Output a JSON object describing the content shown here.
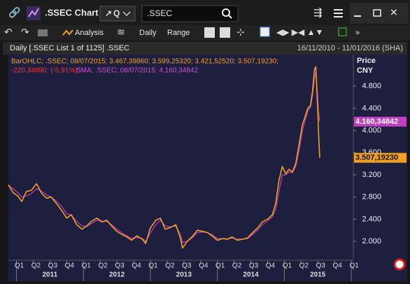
{
  "toolbar": {
    "app_title": ".SSEC Chart",
    "quote_button": "Q",
    "search": ".SSEC",
    "analysis": "Analysis",
    "interval": "Daily",
    "range": "Range"
  },
  "chart_data": {
    "type": "line",
    "header": "Daily [.SSEC List 1 of 1125] .SSEC",
    "date_range": "16/11/2010 - 11/01/2016 (SHA)",
    "y_label": "Price",
    "y_unit": "CNY",
    "annotations": [
      {
        "text": "BarOHLC; .SSEC; 08/07/2015; 3.467,39860; 3.599,25320; 3.421,52520; 3.507,19230;",
        "color": "#f0a020"
      },
      {
        "text": "-220,34890; (-5,91%);",
        "color": "#ff3030"
      },
      {
        "text": "SMA; .SSEC; 08/07/2015; 4.160,34842",
        "color": "#d050d0"
      }
    ],
    "x": [
      2010.88,
      2010.95,
      2011.02,
      2011.08,
      2011.15,
      2011.22,
      2011.3,
      2011.38,
      2011.45,
      2011.52,
      2011.6,
      2011.68,
      2011.75,
      2011.82,
      2011.9,
      2011.98,
      2012.05,
      2012.12,
      2012.2,
      2012.28,
      2012.35,
      2012.42,
      2012.5,
      2012.58,
      2012.65,
      2012.72,
      2012.8,
      2012.88,
      2012.93,
      2013.0,
      2013.08,
      2013.15,
      2013.22,
      2013.3,
      2013.38,
      2013.45,
      2013.48,
      2013.55,
      2013.62,
      2013.7,
      2013.78,
      2013.85,
      2013.92,
      2014.0,
      2014.08,
      2014.15,
      2014.22,
      2014.3,
      2014.38,
      2014.45,
      2014.52,
      2014.6,
      2014.67,
      2014.75,
      2014.82,
      2014.87,
      2014.92,
      2014.97,
      2015.02,
      2015.07,
      2015.12,
      2015.17,
      2015.22,
      2015.27,
      2015.31,
      2015.35,
      2015.39,
      2015.42,
      2015.45,
      2015.47,
      2015.49,
      2015.5,
      2015.51,
      2015.52,
      2015.53
    ],
    "series": [
      {
        "name": "SMA",
        "color": "#c040c0",
        "last_label": "4.160,34842",
        "values": [
          3.0,
          2.95,
          2.88,
          2.8,
          2.82,
          2.86,
          2.95,
          2.9,
          2.84,
          2.8,
          2.72,
          2.62,
          2.5,
          2.47,
          2.36,
          2.28,
          2.27,
          2.32,
          2.38,
          2.36,
          2.36,
          2.3,
          2.22,
          2.15,
          2.1,
          2.05,
          2.07,
          2.05,
          2.0,
          2.15,
          2.3,
          2.38,
          2.28,
          2.26,
          2.28,
          2.12,
          1.98,
          2.0,
          2.06,
          2.16,
          2.17,
          2.16,
          2.12,
          2.05,
          2.05,
          2.04,
          2.06,
          2.04,
          2.04,
          2.05,
          2.12,
          2.2,
          2.3,
          2.37,
          2.44,
          2.58,
          2.9,
          3.2,
          3.2,
          3.25,
          3.24,
          3.35,
          3.65,
          4.0,
          4.18,
          4.35,
          4.42,
          4.62,
          4.95,
          5.05,
          4.75,
          4.55,
          4.35,
          4.25,
          4.16
        ]
      },
      {
        "name": "BarOHLC",
        "color": "#f0a020",
        "last_label": "3.507,19230",
        "values": [
          3.02,
          2.88,
          2.82,
          2.72,
          2.9,
          2.92,
          3.04,
          2.86,
          2.78,
          2.8,
          2.68,
          2.55,
          2.42,
          2.48,
          2.3,
          2.22,
          2.28,
          2.36,
          2.42,
          2.35,
          2.38,
          2.28,
          2.18,
          2.12,
          2.08,
          2.02,
          2.1,
          2.04,
          1.96,
          2.24,
          2.38,
          2.42,
          2.22,
          2.25,
          2.3,
          2.05,
          1.88,
          2.0,
          2.08,
          2.2,
          2.18,
          2.16,
          2.1,
          2.02,
          2.05,
          2.04,
          2.08,
          2.02,
          2.04,
          2.06,
          2.15,
          2.24,
          2.35,
          2.4,
          2.48,
          2.68,
          3.1,
          3.35,
          3.22,
          3.3,
          3.25,
          3.4,
          3.75,
          4.1,
          4.25,
          4.4,
          4.45,
          4.7,
          5.1,
          5.15,
          4.6,
          4.35,
          4.0,
          3.7,
          3.507
        ]
      }
    ],
    "xlim": [
      2010.88,
      2016.03
    ],
    "ylim": [
      1.66,
      5.37
    ],
    "yticks": [
      {
        "value": 2.0,
        "label": "2.000"
      },
      {
        "value": 2.4,
        "label": "2.400"
      },
      {
        "value": 2.8,
        "label": "2.800"
      },
      {
        "value": 3.2,
        "label": "3.200"
      },
      {
        "value": 3.6,
        "label": "3.600"
      },
      {
        "value": 4.0,
        "label": "4.000"
      },
      {
        "value": 4.4,
        "label": "4.400"
      },
      {
        "value": 4.8,
        "label": "4.800"
      }
    ],
    "xticks": [
      {
        "value": 2011.0,
        "label": "Q1"
      },
      {
        "value": 2011.25,
        "label": "Q2"
      },
      {
        "value": 2011.5,
        "label": "Q3"
      },
      {
        "value": 2011.75,
        "label": "Q4"
      },
      {
        "value": 2012.0,
        "label": "Q1"
      },
      {
        "value": 2012.25,
        "label": "Q2"
      },
      {
        "value": 2012.5,
        "label": "Q3"
      },
      {
        "value": 2012.75,
        "label": "Q4"
      },
      {
        "value": 2013.0,
        "label": "Q1"
      },
      {
        "value": 2013.25,
        "label": "Q2"
      },
      {
        "value": 2013.5,
        "label": "Q3"
      },
      {
        "value": 2013.75,
        "label": "Q4"
      },
      {
        "value": 2014.0,
        "label": "Q1"
      },
      {
        "value": 2014.25,
        "label": "Q2"
      },
      {
        "value": 2014.5,
        "label": "Q3"
      },
      {
        "value": 2014.75,
        "label": "Q4"
      },
      {
        "value": 2015.0,
        "label": "Q1"
      },
      {
        "value": 2015.25,
        "label": "Q2"
      },
      {
        "value": 2015.5,
        "label": "Q3"
      },
      {
        "value": 2015.75,
        "label": "Q4"
      },
      {
        "value": 2016.0,
        "label": "Q1"
      }
    ],
    "xticks_years": [
      {
        "value": 2011.5,
        "label": "2011"
      },
      {
        "value": 2012.5,
        "label": "2012"
      },
      {
        "value": 2013.5,
        "label": "2013"
      },
      {
        "value": 2014.5,
        "label": "2014"
      },
      {
        "value": 2015.5,
        "label": "2015"
      }
    ]
  }
}
